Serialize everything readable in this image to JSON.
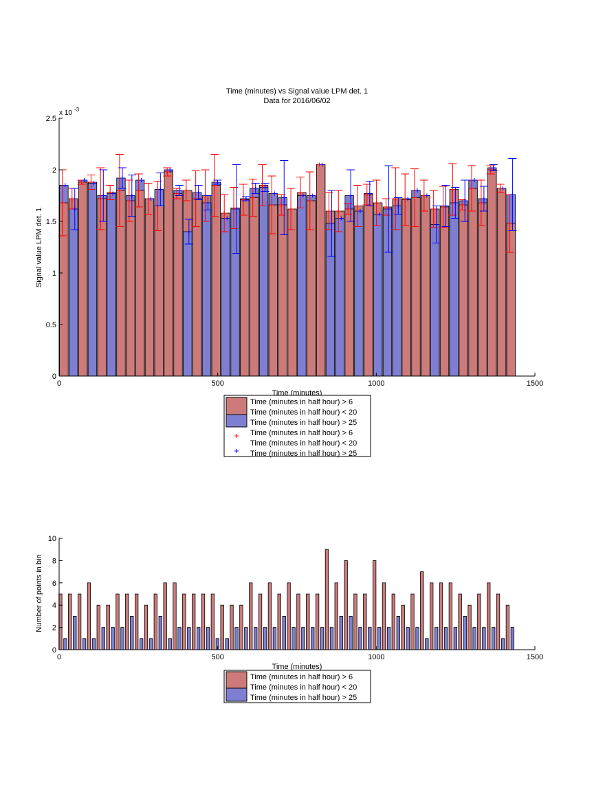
{
  "figure": {
    "title_line1": "Time (minutes) vs Signal value LPM det. 1",
    "title_line2": "Data for 2016/06/02"
  },
  "colors": {
    "red_bar": "#cc7a7a",
    "blue_bar": "#7f7fd2",
    "red_err": "#ff0000",
    "blue_err": "#0000ff"
  },
  "chart_data": [
    {
      "type": "bar",
      "title": "Time (minutes) vs Signal value LPM det. 1",
      "subtitle": "Data for 2016/06/02",
      "xlabel": "Time (minutes)",
      "ylabel": "Signal value LPM det. 1",
      "y_exponent_label": "x 10",
      "y_exponent_power": "-3",
      "xlim": [
        0,
        1500
      ],
      "ylim": [
        0,
        2.5
      ],
      "xticks": [
        "0",
        "500",
        "1000",
        "1500"
      ],
      "yticks": [
        "0",
        "0.5",
        "1",
        "1.5",
        "2",
        "2.5"
      ],
      "grid": false,
      "legend_position": "below",
      "legend": [
        "Time (minutes in half hour) > 6",
        "Time (minutes in half hour) < 20",
        "Time (minutes in half hour) > 25",
        "Time (minutes in half hour) > 6",
        "Time (minutes in half hour) < 20",
        "Time (minutes in half hour) > 25"
      ],
      "x": [
        15,
        45,
        75,
        105,
        135,
        165,
        195,
        225,
        255,
        285,
        315,
        345,
        375,
        405,
        435,
        465,
        495,
        525,
        555,
        585,
        615,
        645,
        675,
        705,
        735,
        765,
        795,
        825,
        855,
        885,
        915,
        945,
        975,
        1005,
        1035,
        1065,
        1095,
        1125,
        1155,
        1185,
        1215,
        1245,
        1275,
        1305,
        1335,
        1365,
        1395,
        1425
      ],
      "series": [
        {
          "name": "Time (minutes in half hour) > 6",
          "values": [
            1.68,
            1.72,
            1.88,
            1.88,
            1.72,
            1.78,
            1.8,
            1.7,
            1.8,
            1.72,
            1.65,
            1.98,
            1.77,
            1.8,
            1.72,
            1.75,
            1.85,
            1.58,
            1.63,
            1.71,
            1.73,
            1.85,
            1.66,
            1.66,
            1.62,
            1.78,
            1.7,
            2.05,
            1.6,
            1.6,
            1.62,
            1.65,
            1.76,
            1.68,
            1.64,
            1.72,
            1.71,
            1.73,
            1.75,
            1.62,
            1.64,
            1.81,
            1.66,
            1.82,
            1.68,
            2.0,
            1.82,
            1.48
          ],
          "err": [
            0.32,
            0.1,
            0.02,
            0.07,
            0.3,
            0.07,
            0.35,
            0.2,
            0.16,
            0.15,
            0.24,
            0.04,
            0.05,
            0.1,
            0.27,
            0.25,
            0.3,
            0.18,
            0.2,
            0.15,
            0.18,
            0.2,
            0.28,
            0.1,
            0.2,
            0.15,
            0.28,
            0.0,
            0.18,
            0.2,
            0.05,
            0.2,
            0.1,
            0.22,
            0.08,
            0.3,
            0.25,
            0.28,
            0.15,
            0.18,
            0.2,
            0.25,
            0.05,
            0.22,
            0.22,
            0.04,
            0.04,
            0.28
          ]
        },
        {
          "name": "Time (minutes in half hour) > 25",
          "values": [
            1.85,
            1.62,
            1.9,
            1.87,
            1.75,
            1.77,
            1.92,
            1.75,
            1.9,
            1.72,
            1.81,
            2.0,
            1.8,
            1.4,
            1.78,
            1.68,
            1.88,
            1.53,
            1.62,
            1.72,
            1.82,
            1.83,
            1.77,
            1.73,
            1.75,
            1.75,
            1.75,
            2.05,
            1.48,
            1.53,
            1.75,
            1.6,
            1.77,
            1.57,
            1.62,
            1.65,
            1.72,
            1.8,
            1.75,
            1.47,
            1.65,
            1.68,
            1.7,
            1.9,
            1.72,
            2.02,
            1.82,
            1.76
          ],
          "err": [
            0.0,
            0.2,
            0.0,
            0.0,
            0.25,
            0.0,
            0.1,
            0.2,
            0.0,
            0.0,
            0.16,
            0.0,
            0.05,
            0.12,
            0.07,
            0.07,
            0.02,
            0.0,
            0.43,
            0.02,
            0.05,
            0.04,
            0.0,
            0.36,
            0.0,
            0.0,
            0.0,
            0.0,
            0.32,
            0.0,
            0.25,
            0.0,
            0.12,
            0.0,
            0.42,
            0.08,
            0.0,
            0.0,
            0.0,
            0.18,
            0.2,
            0.15,
            0.2,
            0.0,
            0.12,
            0.03,
            0.0,
            0.35
          ]
        }
      ],
      "center_bar_index": 24,
      "center_bar_series": "Time (minutes in half hour) > 6",
      "center_bar_value": 1.62
    },
    {
      "type": "bar",
      "xlabel": "Time (minutes)",
      "ylabel": "Number of points in bin",
      "xlim": [
        0,
        1500
      ],
      "ylim": [
        0,
        10
      ],
      "xticks": [
        "0",
        "500",
        "1000",
        "1500"
      ],
      "yticks": [
        "0",
        "2",
        "4",
        "6",
        "8",
        "10"
      ],
      "grid": false,
      "legend_position": "below",
      "legend": [
        "Time (minutes in half hour) > 6",
        "Time (minutes in half hour) < 20",
        "Time (minutes in half hour) > 25"
      ],
      "x": [
        15,
        45,
        75,
        105,
        135,
        165,
        195,
        225,
        255,
        285,
        315,
        345,
        375,
        405,
        435,
        465,
        495,
        525,
        555,
        585,
        615,
        645,
        675,
        705,
        735,
        765,
        795,
        825,
        855,
        885,
        915,
        945,
        975,
        1005,
        1035,
        1065,
        1095,
        1125,
        1155,
        1185,
        1215,
        1245,
        1275,
        1305,
        1335,
        1365,
        1395,
        1425
      ],
      "series": [
        {
          "name": "Time (minutes in half hour) > 6",
          "values": [
            5,
            5,
            5,
            6,
            4,
            4,
            5,
            5,
            5,
            4,
            5,
            6,
            6,
            5,
            5,
            5,
            5,
            4,
            4,
            4,
            6,
            5,
            6,
            5,
            6,
            5,
            5,
            5,
            9,
            6,
            8,
            5,
            5,
            8,
            6,
            5,
            4,
            5,
            7,
            6,
            6,
            6,
            5,
            4,
            5,
            6,
            5,
            4
          ]
        },
        {
          "name": "Time (minutes in half hour) > 25",
          "values": [
            1,
            3,
            1,
            1,
            2,
            2,
            2,
            3,
            1,
            1,
            3,
            1,
            2,
            2,
            2,
            2,
            1,
            1,
            2,
            2,
            2,
            2,
            2,
            3,
            2,
            2,
            2,
            2,
            2,
            3,
            3,
            2,
            2,
            2,
            2,
            3,
            2,
            2,
            1,
            2,
            2,
            2,
            3,
            2,
            2,
            2,
            1,
            2
          ]
        }
      ]
    }
  ]
}
